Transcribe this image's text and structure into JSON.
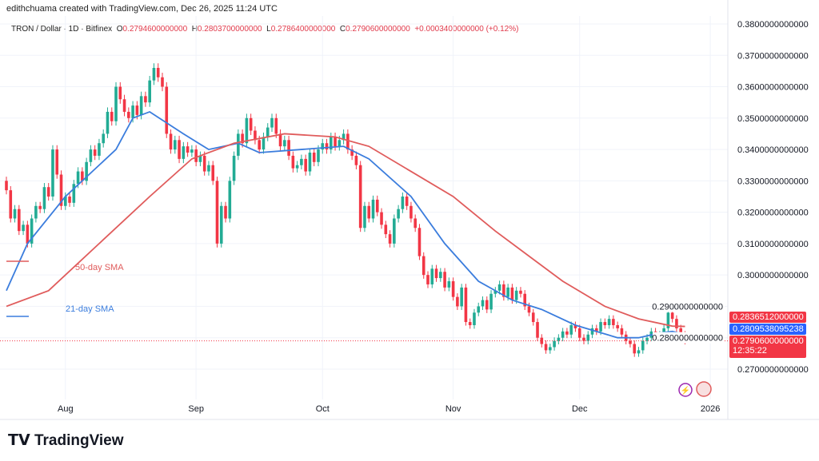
{
  "credit": "edithchuama created with TradingView.com, Dec 26, 2025 11:24 UTC",
  "legend": {
    "symbol": "TRON / Dollar · 1D · Bitfinex",
    "o_label": "O",
    "o": "0.2794600000000",
    "h_label": "H",
    "h": "0.2803700000000",
    "l_label": "L",
    "l": "0.2786400000000",
    "c_label": "C",
    "c": "0.2790600000000",
    "change": "+0.0003400000000 (+0.12%)"
  },
  "badges": {
    "sma50": "0.2836512000000",
    "sma21": "0.2809538095238",
    "last": "0.2790600000000",
    "countdown": "12:35:22"
  },
  "logo": "TradingView",
  "colors": {
    "up": "#22ab94",
    "down": "#f23645",
    "sma50": "#e05c5c",
    "sma21": "#3b7ddd",
    "grid": "#f0f3fa"
  },
  "icons": [
    "lightning-icon",
    "us-flag-icon"
  ],
  "chart_data": {
    "type": "candlestick",
    "title": "TRON / Dollar · 1D · Bitfinex",
    "xlim": [
      "2025-07-18",
      "2025-12-26"
    ],
    "ylim": [
      0.265,
      0.383
    ],
    "grid": true,
    "x_ticks": [
      {
        "label": "Aug",
        "date": "2025-08-01"
      },
      {
        "label": "Sep",
        "date": "2025-09-01"
      },
      {
        "label": "Oct",
        "date": "2025-10-01"
      },
      {
        "label": "Nov",
        "date": "2025-11-01"
      },
      {
        "label": "Dec",
        "date": "2025-12-01"
      },
      {
        "label": "2026",
        "date": "2026-01-01"
      }
    ],
    "y_ticks": [
      "0.3800000000000",
      "0.3700000000000",
      "0.3600000000000",
      "0.3500000000000",
      "0.3400000000000",
      "0.3300000000000",
      "0.3200000000000",
      "0.3100000000000",
      "0.3000000000000",
      "0.2900000000000",
      "0.2800000000000",
      "0.2700000000000"
    ],
    "daily_closes": [
      0.327,
      0.318,
      0.321,
      0.314,
      0.316,
      0.31,
      0.318,
      0.322,
      0.321,
      0.328,
      0.325,
      0.34,
      0.332,
      0.322,
      0.325,
      0.323,
      0.329,
      0.333,
      0.33,
      0.336,
      0.34,
      0.338,
      0.342,
      0.345,
      0.352,
      0.349,
      0.36,
      0.356,
      0.352,
      0.35,
      0.354,
      0.351,
      0.357,
      0.355,
      0.362,
      0.366,
      0.363,
      0.36,
      0.345,
      0.34,
      0.343,
      0.337,
      0.341,
      0.339,
      0.34,
      0.336,
      0.338,
      0.333,
      0.335,
      0.33,
      0.31,
      0.322,
      0.318,
      0.33,
      0.338,
      0.345,
      0.342,
      0.35,
      0.346,
      0.343,
      0.34,
      0.344,
      0.347,
      0.35,
      0.345,
      0.341,
      0.343,
      0.338,
      0.334,
      0.335,
      0.337,
      0.333,
      0.339,
      0.336,
      0.34,
      0.342,
      0.34,
      0.344,
      0.341,
      0.343,
      0.345,
      0.34,
      0.338,
      0.335,
      0.315,
      0.322,
      0.318,
      0.324,
      0.32,
      0.316,
      0.313,
      0.31,
      0.318,
      0.321,
      0.325,
      0.322,
      0.318,
      0.315,
      0.306,
      0.3,
      0.297,
      0.302,
      0.299,
      0.301,
      0.296,
      0.298,
      0.293,
      0.29,
      0.296,
      0.285,
      0.284,
      0.288,
      0.29,
      0.292,
      0.289,
      0.294,
      0.295,
      0.297,
      0.293,
      0.296,
      0.292,
      0.295,
      0.294,
      0.29,
      0.288,
      0.285,
      0.28,
      0.278,
      0.276,
      0.277,
      0.279,
      0.28,
      0.282,
      0.281,
      0.284,
      0.283,
      0.28,
      0.279,
      0.281,
      0.283,
      0.282,
      0.285,
      0.284,
      0.286,
      0.284,
      0.283,
      0.281,
      0.279,
      0.278,
      0.275,
      0.276,
      0.279,
      0.28,
      0.282,
      0.28,
      0.281,
      0.283,
      0.288,
      0.286,
      0.283,
      0.281,
      0.279
    ],
    "series": [
      {
        "name": "21-day SMA",
        "points": [
          [
            "2025-07-18",
            0.295
          ],
          [
            "2025-07-23",
            0.31
          ],
          [
            "2025-08-01",
            0.325
          ],
          [
            "2025-08-13",
            0.34
          ],
          [
            "2025-08-17",
            0.35
          ],
          [
            "2025-08-21",
            0.352
          ],
          [
            "2025-08-29",
            0.345
          ],
          [
            "2025-09-04",
            0.34
          ],
          [
            "2025-09-11",
            0.342
          ],
          [
            "2025-09-16",
            0.339
          ],
          [
            "2025-09-26",
            0.34
          ],
          [
            "2025-10-06",
            0.341
          ],
          [
            "2025-10-12",
            0.337
          ],
          [
            "2025-10-22",
            0.325
          ],
          [
            "2025-10-30",
            0.31
          ],
          [
            "2025-11-07",
            0.298
          ],
          [
            "2025-11-15",
            0.292
          ],
          [
            "2025-11-22",
            0.289
          ],
          [
            "2025-11-30",
            0.284
          ],
          [
            "2025-12-05",
            0.282
          ],
          [
            "2025-12-10",
            0.28
          ],
          [
            "2025-12-15",
            0.28
          ],
          [
            "2025-12-20",
            0.2815
          ],
          [
            "2025-12-23",
            0.282
          ],
          [
            "2025-12-26",
            0.281
          ]
        ]
      },
      {
        "name": "50-day SMA",
        "points": [
          [
            "2025-07-18",
            0.29
          ],
          [
            "2025-07-28",
            0.295
          ],
          [
            "2025-08-09",
            0.31
          ],
          [
            "2025-08-21",
            0.325
          ],
          [
            "2025-08-31",
            0.337
          ],
          [
            "2025-09-10",
            0.342
          ],
          [
            "2025-09-22",
            0.345
          ],
          [
            "2025-10-04",
            0.344
          ],
          [
            "2025-10-12",
            0.341
          ],
          [
            "2025-10-22",
            0.333
          ],
          [
            "2025-11-01",
            0.325
          ],
          [
            "2025-11-11",
            0.314
          ],
          [
            "2025-11-19",
            0.306
          ],
          [
            "2025-11-27",
            0.298
          ],
          [
            "2025-12-07",
            0.29
          ],
          [
            "2025-12-15",
            0.286
          ],
          [
            "2025-12-23",
            0.2837
          ],
          [
            "2025-12-26",
            0.2836
          ]
        ]
      }
    ]
  }
}
